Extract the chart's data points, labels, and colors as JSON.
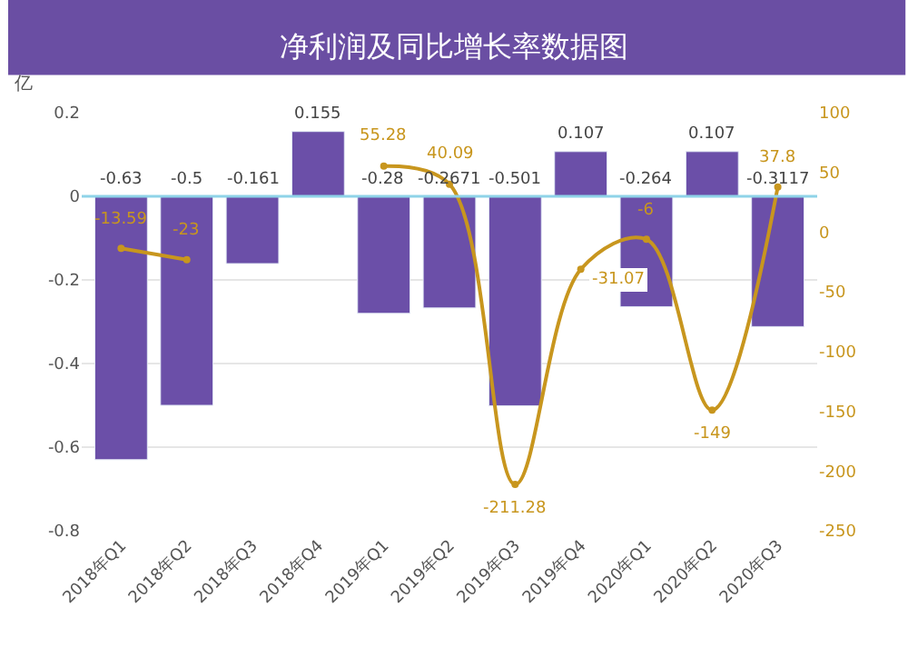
{
  "chart_data": {
    "type": "bar",
    "title": "净利润及同比增长率数据图",
    "ylabel": "亿",
    "categories": [
      "2018年Q1",
      "2018年Q2",
      "2018年Q3",
      "2018年Q4",
      "2019年Q1",
      "2019年Q2",
      "2019年Q3",
      "2019年Q4",
      "2020年Q1",
      "2020年Q2",
      "2020年Q3"
    ],
    "series": [
      {
        "color": "#6b4fa8",
        "values": [
          -0.63,
          -0.5,
          -0.161,
          0.155,
          -0.28,
          -0.2671,
          -0.501,
          0.107,
          -0.264,
          0.107,
          -0.3117
        ]
      },
      {
        "type": "line",
        "axis": "y2",
        "color": "#c8961e",
        "values": [
          -13.59,
          -23,
          null,
          null,
          55.28,
          40.09,
          -211.28,
          -31.07,
          -6,
          -149,
          37.8
        ]
      }
    ],
    "ylim": [
      -0.8,
      0.2
    ],
    "yticks": [
      -0.8,
      -0.6,
      -0.4,
      -0.2,
      0,
      0.2
    ],
    "y2lim": [
      -250,
      100
    ],
    "y2ticks": [
      -250,
      -200,
      -150,
      -100,
      -50,
      0,
      50,
      100
    ],
    "ref_lines": [
      {
        "axis": "y",
        "value": 0,
        "color": "#8fd3e8"
      }
    ],
    "data_labels": true,
    "grid": "y",
    "marker": "circle",
    "line_style": "solid"
  }
}
